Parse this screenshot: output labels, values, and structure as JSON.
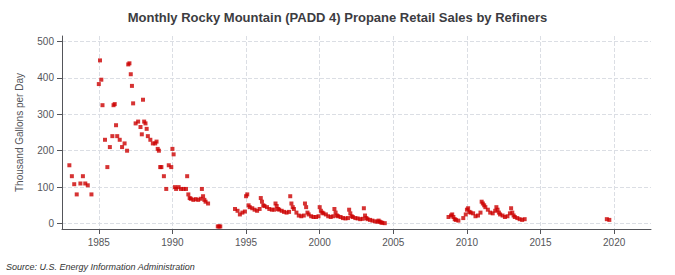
{
  "chart_data": {
    "type": "scatter",
    "title": "Monthly Rocky Mountain (PADD 4) Propane Retail Sales by Refiners",
    "ylabel": "Thousand Gallons per Day",
    "annotation": "Source: U.S. Energy Information Administration",
    "color": "#cc0000",
    "marker": "square",
    "grid": true,
    "xlim": [
      1982.5,
      2022.5
    ],
    "ylim": [
      -15,
      515
    ],
    "xticks": [
      1985,
      1990,
      1995,
      2000,
      2005,
      2010,
      2015,
      2020
    ],
    "yticks": [
      0,
      100,
      200,
      300,
      400,
      500
    ],
    "x": [
      1983.0,
      1983.17,
      1983.33,
      1983.5,
      1983.75,
      1983.92,
      1984.08,
      1984.25,
      1984.5,
      1985.0,
      1985.08,
      1985.17,
      1985.25,
      1985.42,
      1985.58,
      1985.75,
      1985.92,
      1986.0,
      1986.08,
      1986.17,
      1986.25,
      1986.42,
      1986.58,
      1986.75,
      1986.92,
      1987.0,
      1987.08,
      1987.17,
      1987.25,
      1987.33,
      1987.5,
      1987.67,
      1987.83,
      1987.92,
      1988.0,
      1988.08,
      1988.17,
      1988.25,
      1988.33,
      1988.5,
      1988.67,
      1988.83,
      1988.92,
      1989.0,
      1989.08,
      1989.17,
      1989.25,
      1989.42,
      1989.58,
      1989.75,
      1989.92,
      1990.0,
      1990.08,
      1990.17,
      1990.25,
      1990.42,
      1990.58,
      1990.75,
      1990.92,
      1991.0,
      1991.08,
      1991.17,
      1991.25,
      1991.42,
      1991.58,
      1991.75,
      1991.92,
      1992.0,
      1992.08,
      1992.17,
      1992.25,
      1992.42,
      1993.08,
      1993.17,
      1993.25,
      1994.25,
      1994.42,
      1994.58,
      1994.75,
      1994.92,
      1995.0,
      1995.08,
      1995.17,
      1995.25,
      1995.42,
      1995.58,
      1995.75,
      1995.92,
      1996.0,
      1996.08,
      1996.17,
      1996.25,
      1996.42,
      1996.58,
      1996.75,
      1996.92,
      1997.0,
      1997.08,
      1997.17,
      1997.25,
      1997.42,
      1997.58,
      1997.75,
      1997.92,
      1998.0,
      1998.08,
      1998.17,
      1998.25,
      1998.42,
      1998.58,
      1998.75,
      1998.92,
      1999.0,
      1999.08,
      1999.17,
      1999.25,
      1999.42,
      1999.58,
      1999.75,
      1999.92,
      2000.0,
      2000.08,
      2000.17,
      2000.25,
      2000.42,
      2000.58,
      2000.75,
      2000.92,
      2001.0,
      2001.08,
      2001.17,
      2001.25,
      2001.42,
      2001.58,
      2001.75,
      2001.92,
      2002.0,
      2002.08,
      2002.17,
      2002.25,
      2002.42,
      2002.58,
      2002.75,
      2002.92,
      2003.0,
      2003.08,
      2003.17,
      2003.25,
      2003.42,
      2003.58,
      2003.75,
      2003.92,
      2004.0,
      2004.08,
      2004.17,
      2004.25,
      2004.42,
      2008.75,
      2008.92,
      2009.0,
      2009.08,
      2009.17,
      2009.25,
      2009.42,
      2009.75,
      2009.92,
      2010.0,
      2010.08,
      2010.17,
      2010.25,
      2010.42,
      2010.58,
      2010.75,
      2010.92,
      2011.0,
      2011.08,
      2011.17,
      2011.25,
      2011.42,
      2011.58,
      2011.75,
      2011.92,
      2012.0,
      2012.08,
      2012.17,
      2012.25,
      2012.42,
      2012.58,
      2012.75,
      2012.92,
      2013.0,
      2013.08,
      2013.17,
      2013.25,
      2013.42,
      2013.58,
      2013.75,
      2013.92,
      2019.5,
      2019.67
    ],
    "values": [
      160,
      130,
      108,
      80,
      110,
      130,
      110,
      105,
      80,
      383,
      448,
      395,
      325,
      230,
      155,
      210,
      240,
      325,
      328,
      270,
      240,
      230,
      210,
      220,
      200,
      437,
      440,
      410,
      378,
      330,
      275,
      280,
      265,
      245,
      340,
      280,
      275,
      260,
      240,
      230,
      220,
      220,
      225,
      205,
      200,
      155,
      155,
      130,
      95,
      160,
      155,
      205,
      190,
      100,
      95,
      100,
      95,
      95,
      95,
      130,
      80,
      70,
      68,
      65,
      67,
      65,
      68,
      95,
      75,
      65,
      60,
      55,
      -8,
      -8,
      -8,
      40,
      35,
      25,
      30,
      33,
      75,
      80,
      50,
      45,
      42,
      38,
      35,
      40,
      70,
      60,
      50,
      48,
      45,
      40,
      38,
      38,
      55,
      48,
      40,
      38,
      35,
      32,
      30,
      32,
      75,
      55,
      45,
      40,
      30,
      22,
      20,
      22,
      55,
      45,
      30,
      25,
      20,
      18,
      18,
      20,
      45,
      35,
      30,
      28,
      25,
      20,
      18,
      20,
      40,
      30,
      22,
      20,
      18,
      15,
      14,
      15,
      38,
      28,
      20,
      18,
      15,
      14,
      12,
      13,
      42,
      22,
      15,
      12,
      10,
      8,
      6,
      5,
      8,
      5,
      3,
      2,
      1,
      18,
      22,
      25,
      18,
      12,
      10,
      8,
      15,
      25,
      38,
      42,
      32,
      30,
      28,
      20,
      22,
      30,
      60,
      55,
      50,
      45,
      38,
      30,
      28,
      35,
      45,
      38,
      30,
      25,
      22,
      18,
      20,
      28,
      42,
      30,
      22,
      18,
      15,
      12,
      10,
      12,
      12,
      10
    ]
  }
}
